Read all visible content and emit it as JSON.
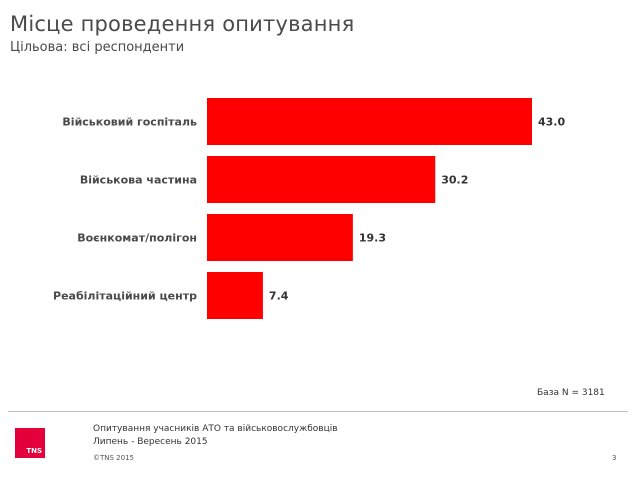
{
  "header": {
    "title": "Місце проведення опитування",
    "subtitle": "Цільова: всі респонденти"
  },
  "chart_data": {
    "type": "bar",
    "orientation": "horizontal",
    "categories": [
      "Військовий госпіталь",
      "Військова частина",
      "Воєнкомат/полігон",
      "Реабілітаційний центр"
    ],
    "values": [
      43.0,
      30.2,
      19.3,
      7.4
    ],
    "value_labels": [
      "43.0",
      "30.2",
      "19.3",
      "7.4"
    ],
    "color": "#ff0000",
    "title": "Місце проведення опитування",
    "xlim": [
      0,
      43.0
    ]
  },
  "base_note": "База N = 3181",
  "footer": {
    "logo_text": "TNS",
    "survey": "Опитування учасників АТО  та військовослужбовців",
    "period": "Липень - Вересень 2015",
    "copyright": "©TNS 2015",
    "page_number": "3"
  }
}
